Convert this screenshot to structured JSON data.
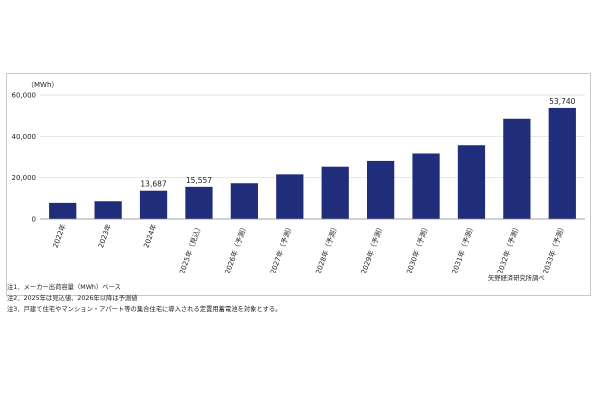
{
  "chart_data": {
    "type": "bar",
    "unit_label": "（MWh）",
    "categories": [
      "2022年",
      "2023年",
      "2024年",
      "2025年（見込）",
      "2026年（予測）",
      "2027年（予測）",
      "2028年（予測）",
      "2029年（予測）",
      "2030年（予測）",
      "2031年（予測）",
      "2032年（予測）",
      "2033年（予測）"
    ],
    "values": [
      7800,
      8600,
      13687,
      15557,
      17300,
      21600,
      25300,
      28100,
      31700,
      35700,
      48500,
      53740
    ],
    "data_labels": [
      {
        "index": 2,
        "text": "13,687"
      },
      {
        "index": 3,
        "text": "15,557"
      },
      {
        "index": 11,
        "text": "53,740"
      }
    ],
    "y_ticks": [
      {
        "value": 0,
        "label": "0"
      },
      {
        "value": 20000,
        "label": "20,000"
      },
      {
        "value": 40000,
        "label": "40,000"
      },
      {
        "value": 60000,
        "label": "60,000"
      }
    ],
    "ylim": [
      0,
      60000
    ],
    "grid": true,
    "bar_color": "#1f2d7a"
  },
  "notes": [
    "注1．メーカー出荷容量（MWh）ベース",
    "注2．2025年は見込値、2026年以降は予測値",
    "注3．戸建て住宅やマンション・アパート等の集合住宅に導入される定置用蓄電池を対象とする。"
  ],
  "source": "矢野経済研究所調べ"
}
